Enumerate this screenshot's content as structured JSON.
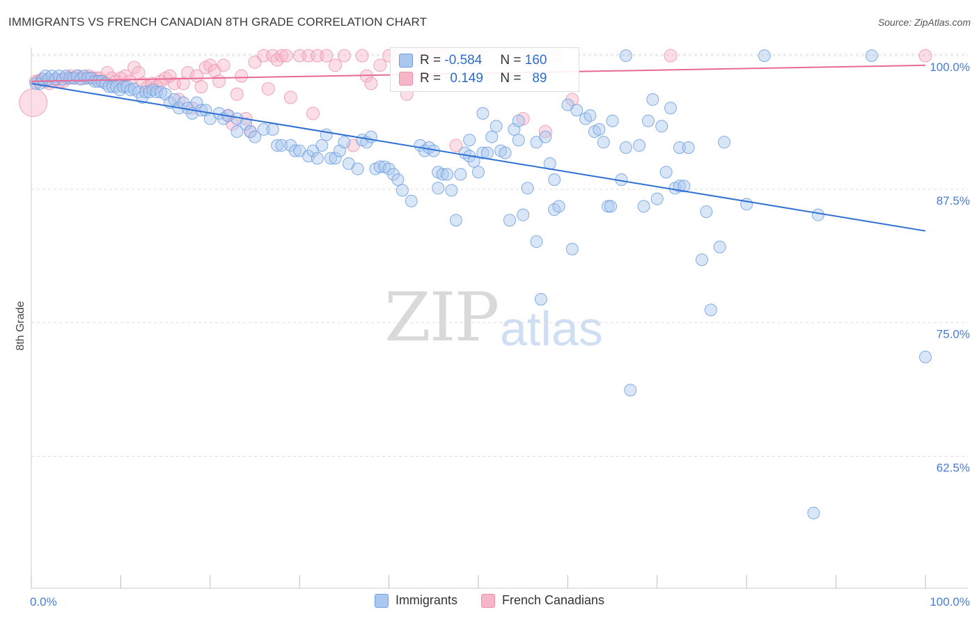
{
  "header": {
    "title": "IMMIGRANTS VS FRENCH CANADIAN 8TH GRADE CORRELATION CHART",
    "source": "Source: ZipAtlas.com"
  },
  "watermark": {
    "zip": "ZIP",
    "atlas": "atlas"
  },
  "legend": {
    "rows": [
      {
        "r_label": "R =",
        "r_value": "-0.584",
        "n_label": "N =",
        "n_value": "160",
        "color": "#a9c7ef"
      },
      {
        "r_label": "R =",
        "r_value": "0.149",
        "n_label": "N =",
        "n_value": "89",
        "color": "#f7b6c8"
      }
    ]
  },
  "bottom_legend": [
    {
      "label": "Immigrants",
      "color": "#a9c7ef"
    },
    {
      "label": "French Canadians",
      "color": "#f7b6c8"
    }
  ],
  "colors": {
    "immigrants_fill": "#a9c7ef",
    "immigrants_stroke": "#6f9fe0",
    "immigrants_line": "#2f6fd3",
    "french_fill": "#f7b6c8",
    "french_stroke": "#ee8fac",
    "french_line": "#e86a92",
    "axis_text": "#4a7bd1",
    "grid": "#dddddd"
  },
  "chart_data": {
    "type": "scatter",
    "title": "IMMIGRANTS VS FRENCH CANADIAN 8TH GRADE CORRELATION CHART",
    "xlabel": "",
    "ylabel": "8th Grade",
    "x_tick_labels": [
      "0.0%",
      "100.0%"
    ],
    "y_tick_labels": [
      "100.0%",
      "87.5%",
      "75.0%",
      "62.5%"
    ],
    "y_ticks": [
      100.0,
      87.5,
      75.0,
      62.5
    ],
    "xlim": [
      0,
      100
    ],
    "ylim": [
      50.0,
      101.0
    ],
    "grid": true,
    "series": [
      {
        "name": "Immigrants",
        "r": -0.584,
        "n": 160,
        "trend": {
          "x": [
            0,
            100
          ],
          "y": [
            97.4,
            83.6
          ]
        },
        "points": [
          [
            0.5,
            97.4
          ],
          [
            1.0,
            97.4
          ],
          [
            1.3,
            97.8
          ],
          [
            1.6,
            98.1
          ],
          [
            1.9,
            97.8
          ],
          [
            2.3,
            98.1
          ],
          [
            2.7,
            97.8
          ],
          [
            3.1,
            98.1
          ],
          [
            3.5,
            97.8
          ],
          [
            3.9,
            98.1
          ],
          [
            4.3,
            97.9
          ],
          [
            4.7,
            97.9
          ],
          [
            5.1,
            98.1
          ],
          [
            5.5,
            97.8
          ],
          [
            5.9,
            98.1
          ],
          [
            6.3,
            97.9
          ],
          [
            6.7,
            97.9
          ],
          [
            7.1,
            97.6
          ],
          [
            7.5,
            97.6
          ],
          [
            7.9,
            97.6
          ],
          [
            8.3,
            97.4
          ],
          [
            8.7,
            97.1
          ],
          [
            9.1,
            97.1
          ],
          [
            9.5,
            97.1
          ],
          [
            9.9,
            96.8
          ],
          [
            10.3,
            97.1
          ],
          [
            10.7,
            97.1
          ],
          [
            11.1,
            96.8
          ],
          [
            11.5,
            96.9
          ],
          [
            12.0,
            96.6
          ],
          [
            12.4,
            96.1
          ],
          [
            12.8,
            96.6
          ],
          [
            13.2,
            96.6
          ],
          [
            13.6,
            96.8
          ],
          [
            14.0,
            96.6
          ],
          [
            14.5,
            96.6
          ],
          [
            15.0,
            96.4
          ],
          [
            15.5,
            95.6
          ],
          [
            16.0,
            95.9
          ],
          [
            16.5,
            95.1
          ],
          [
            17.0,
            95.6
          ],
          [
            17.5,
            95.1
          ],
          [
            18.0,
            94.6
          ],
          [
            18.5,
            95.6
          ],
          [
            19.0,
            94.9
          ],
          [
            19.5,
            94.9
          ],
          [
            20.0,
            94.1
          ],
          [
            21.0,
            94.6
          ],
          [
            21.5,
            94.1
          ],
          [
            22.0,
            94.4
          ],
          [
            23.0,
            94.1
          ],
          [
            23.0,
            92.9
          ],
          [
            24.0,
            93.6
          ],
          [
            24.5,
            92.9
          ],
          [
            25.0,
            92.4
          ],
          [
            26.0,
            93.1
          ],
          [
            27.0,
            93.1
          ],
          [
            27.5,
            91.6
          ],
          [
            28.0,
            91.6
          ],
          [
            29.0,
            91.6
          ],
          [
            29.5,
            91.1
          ],
          [
            30.0,
            91.1
          ],
          [
            31.0,
            90.6
          ],
          [
            31.5,
            91.1
          ],
          [
            32.0,
            90.4
          ],
          [
            32.5,
            91.6
          ],
          [
            33.0,
            92.6
          ],
          [
            33.5,
            90.4
          ],
          [
            34.0,
            90.4
          ],
          [
            34.5,
            91.1
          ],
          [
            35.0,
            91.9
          ],
          [
            35.5,
            89.9
          ],
          [
            36.5,
            89.4
          ],
          [
            37.0,
            92.1
          ],
          [
            37.5,
            91.9
          ],
          [
            38.0,
            92.4
          ],
          [
            38.5,
            89.4
          ],
          [
            39.0,
            89.6
          ],
          [
            39.5,
            89.6
          ],
          [
            40.0,
            89.4
          ],
          [
            40.5,
            88.9
          ],
          [
            41.0,
            88.4
          ],
          [
            41.5,
            87.4
          ],
          [
            42.5,
            86.4
          ],
          [
            43.5,
            91.6
          ],
          [
            44.0,
            91.1
          ],
          [
            44.5,
            91.4
          ],
          [
            45.0,
            91.1
          ],
          [
            45.5,
            89.1
          ],
          [
            45.5,
            87.6
          ],
          [
            46.0,
            88.9
          ],
          [
            46.5,
            88.9
          ],
          [
            47.0,
            87.4
          ],
          [
            47.5,
            84.6
          ],
          [
            48.0,
            88.9
          ],
          [
            48.5,
            90.9
          ],
          [
            49.0,
            92.1
          ],
          [
            49.0,
            90.6
          ],
          [
            49.5,
            90.1
          ],
          [
            50.0,
            89.1
          ],
          [
            50.5,
            94.6
          ],
          [
            50.5,
            90.9
          ],
          [
            51.5,
            92.4
          ],
          [
            51.0,
            90.9
          ],
          [
            52.0,
            93.4
          ],
          [
            52.5,
            91.1
          ],
          [
            53.0,
            90.9
          ],
          [
            53.5,
            84.6
          ],
          [
            54.0,
            93.1
          ],
          [
            54.5,
            93.9
          ],
          [
            54.5,
            92.1
          ],
          [
            55.0,
            85.1
          ],
          [
            55.5,
            87.6
          ],
          [
            56.5,
            91.9
          ],
          [
            56.5,
            82.6
          ],
          [
            57.0,
            77.2
          ],
          [
            57.5,
            92.4
          ],
          [
            58.0,
            89.9
          ],
          [
            58.5,
            88.4
          ],
          [
            58.5,
            85.6
          ],
          [
            59.0,
            85.9
          ],
          [
            60.0,
            95.4
          ],
          [
            60.5,
            81.9
          ],
          [
            61.0,
            94.9
          ],
          [
            62.0,
            94.1
          ],
          [
            62.5,
            94.4
          ],
          [
            63.0,
            92.9
          ],
          [
            63.5,
            93.1
          ],
          [
            64.0,
            91.9
          ],
          [
            64.5,
            85.9
          ],
          [
            64.8,
            85.9
          ],
          [
            65.0,
            93.9
          ],
          [
            66.0,
            88.4
          ],
          [
            66.5,
            91.4
          ],
          [
            67.0,
            68.7
          ],
          [
            68.0,
            91.6
          ],
          [
            68.5,
            85.9
          ],
          [
            69.0,
            93.9
          ],
          [
            69.5,
            95.9
          ],
          [
            70.0,
            86.6
          ],
          [
            70.5,
            93.4
          ],
          [
            71.0,
            89.1
          ],
          [
            71.5,
            95.1
          ],
          [
            72.0,
            87.6
          ],
          [
            72.5,
            91.4
          ],
          [
            72.5,
            87.8
          ],
          [
            73.0,
            87.8
          ],
          [
            73.5,
            91.4
          ],
          [
            75.0,
            80.9
          ],
          [
            75.5,
            85.4
          ],
          [
            76.0,
            76.2
          ],
          [
            77.0,
            82.1
          ],
          [
            77.5,
            91.9
          ],
          [
            80.0,
            86.1
          ],
          [
            88.0,
            85.1
          ],
          [
            87.5,
            57.2
          ],
          [
            100.0,
            71.8
          ],
          [
            66.5,
            100.0
          ],
          [
            82.0,
            100.0
          ],
          [
            94.0,
            100.0
          ]
        ]
      },
      {
        "name": "French Canadians",
        "r": 0.149,
        "n": 89,
        "trend": {
          "x": [
            0,
            100
          ],
          "y": [
            97.6,
            99.1
          ]
        },
        "points": [
          [
            0.2,
            95.6
          ],
          [
            0.5,
            97.6
          ],
          [
            0.8,
            97.6
          ],
          [
            1.2,
            97.8
          ],
          [
            1.6,
            97.6
          ],
          [
            2.0,
            97.4
          ],
          [
            2.4,
            97.6
          ],
          [
            2.8,
            97.8
          ],
          [
            3.2,
            97.6
          ],
          [
            3.6,
            97.6
          ],
          [
            4.0,
            97.9
          ],
          [
            4.4,
            98.1
          ],
          [
            4.8,
            97.9
          ],
          [
            5.2,
            98.1
          ],
          [
            5.6,
            97.9
          ],
          [
            6.0,
            97.9
          ],
          [
            6.4,
            98.1
          ],
          [
            6.8,
            97.9
          ],
          [
            7.2,
            97.9
          ],
          [
            7.6,
            97.9
          ],
          [
            8.0,
            97.6
          ],
          [
            8.5,
            98.4
          ],
          [
            9.0,
            97.9
          ],
          [
            9.5,
            97.6
          ],
          [
            10.0,
            97.9
          ],
          [
            10.5,
            98.1
          ],
          [
            11.0,
            97.6
          ],
          [
            11.5,
            98.9
          ],
          [
            12.0,
            98.4
          ],
          [
            12.5,
            97.4
          ],
          [
            13.0,
            97.1
          ],
          [
            13.5,
            97.4
          ],
          [
            14.0,
            97.1
          ],
          [
            14.5,
            97.6
          ],
          [
            15.0,
            97.9
          ],
          [
            15.5,
            98.1
          ],
          [
            16.0,
            97.4
          ],
          [
            16.5,
            95.9
          ],
          [
            17.0,
            97.4
          ],
          [
            17.5,
            98.4
          ],
          [
            18.0,
            95.1
          ],
          [
            18.5,
            98.1
          ],
          [
            19.0,
            97.1
          ],
          [
            19.5,
            98.9
          ],
          [
            20.0,
            99.1
          ],
          [
            20.5,
            98.6
          ],
          [
            21.0,
            97.6
          ],
          [
            21.5,
            99.1
          ],
          [
            22.0,
            94.4
          ],
          [
            22.5,
            93.6
          ],
          [
            23.0,
            96.4
          ],
          [
            23.5,
            98.1
          ],
          [
            24.0,
            94.1
          ],
          [
            24.5,
            92.9
          ],
          [
            25.0,
            99.4
          ],
          [
            26.0,
            100.0
          ],
          [
            26.5,
            96.9
          ],
          [
            27.0,
            100.0
          ],
          [
            27.5,
            99.6
          ],
          [
            28.0,
            100.0
          ],
          [
            28.5,
            100.0
          ],
          [
            29.0,
            96.1
          ],
          [
            30.0,
            100.0
          ],
          [
            31.0,
            100.0
          ],
          [
            31.5,
            94.6
          ],
          [
            32.0,
            100.0
          ],
          [
            33.0,
            100.0
          ],
          [
            34.0,
            99.1
          ],
          [
            35.0,
            100.0
          ],
          [
            36.0,
            91.6
          ],
          [
            37.0,
            100.0
          ],
          [
            37.5,
            98.1
          ],
          [
            38.0,
            97.4
          ],
          [
            39.0,
            99.1
          ],
          [
            40.0,
            100.0
          ],
          [
            41.0,
            100.0
          ],
          [
            42.0,
            96.4
          ],
          [
            43.0,
            100.0
          ],
          [
            44.0,
            100.0
          ],
          [
            45.0,
            100.0
          ],
          [
            46.0,
            100.0
          ],
          [
            47.5,
            91.6
          ],
          [
            50.0,
            100.0
          ],
          [
            55.0,
            94.1
          ],
          [
            57.5,
            92.9
          ],
          [
            58.5,
            100.0
          ],
          [
            60.5,
            95.9
          ],
          [
            71.5,
            100.0
          ],
          [
            100.0,
            100.0
          ]
        ]
      }
    ]
  }
}
